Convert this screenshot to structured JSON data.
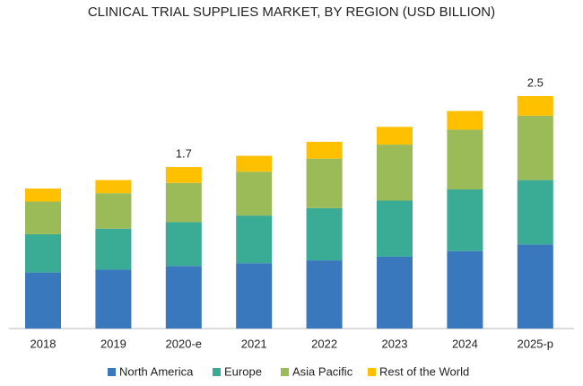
{
  "chart_data": {
    "type": "stacked-bar",
    "title": "CLINICAL TRIAL SUPPLIES MARKET, BY REGION (USD BILLION)",
    "categories": [
      "2018",
      "2019",
      "2020-e",
      "2021",
      "2022",
      "2023",
      "2024",
      "2025-p"
    ],
    "series": [
      {
        "name": "North America",
        "color": "#3a78bd",
        "values": [
          0.6,
          0.63,
          0.67,
          0.7,
          0.73,
          0.77,
          0.83,
          0.9
        ]
      },
      {
        "name": "Europe",
        "color": "#3aab95",
        "values": [
          0.41,
          0.44,
          0.47,
          0.51,
          0.56,
          0.6,
          0.66,
          0.69
        ]
      },
      {
        "name": "Asia Pacific",
        "color": "#9bbb59",
        "values": [
          0.35,
          0.38,
          0.42,
          0.47,
          0.53,
          0.6,
          0.64,
          0.69
        ]
      },
      {
        "name": "Rest of the World",
        "color": "#ffc000",
        "values": [
          0.14,
          0.14,
          0.17,
          0.17,
          0.18,
          0.19,
          0.2,
          0.21
        ]
      }
    ],
    "annotations": [
      {
        "x": "2020-e",
        "text": "1.7"
      },
      {
        "x": "2025-p",
        "text": "2.5"
      }
    ],
    "legend": "bottom"
  }
}
